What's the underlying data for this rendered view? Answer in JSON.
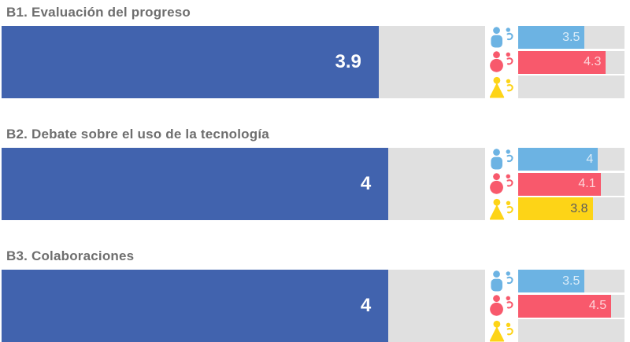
{
  "palette": {
    "overall_bar": "#4163ae",
    "school_leaders_bar": "#6cb3e3",
    "teachers_bar": "#f8596c",
    "students_bar": "#fdd417",
    "track_background": "#e0e0e0",
    "title_text": "#6e6e6e",
    "value_on_overall": "#ffffff",
    "value_on_light": "rgba(255,255,255,0.75)",
    "value_on_yellow": "#5c5c5c"
  },
  "scale_overall_range": "0,5",
  "scale_groups_range": "1,5",
  "chart_data": [
    {
      "type": "bar",
      "orientation": "horizontal",
      "title": "B1. Evaluación del progreso",
      "axis_range_overall": [
        0,
        5
      ],
      "axis_range_groups": [
        1,
        5
      ],
      "grid": false,
      "overall": {
        "value": 3.9,
        "label": "3.9"
      },
      "groups": [
        {
          "name": "school-leaders",
          "icon": "school-leaders-icon",
          "value": 3.5,
          "label": "3.5"
        },
        {
          "name": "teachers",
          "icon": "teachers-icon",
          "value": 4.3,
          "label": "4.3"
        },
        {
          "name": "students",
          "icon": "students-icon",
          "value": null,
          "label": ""
        }
      ]
    },
    {
      "type": "bar",
      "orientation": "horizontal",
      "title": "B2. Debate sobre el uso de la tecnología",
      "axis_range_overall": [
        0,
        5
      ],
      "axis_range_groups": [
        1,
        5
      ],
      "grid": false,
      "overall": {
        "value": 4,
        "label": "4"
      },
      "groups": [
        {
          "name": "school-leaders",
          "icon": "school-leaders-icon",
          "value": 4,
          "label": "4"
        },
        {
          "name": "teachers",
          "icon": "teachers-icon",
          "value": 4.1,
          "label": "4.1"
        },
        {
          "name": "students",
          "icon": "students-icon",
          "value": 3.8,
          "label": "3.8"
        }
      ]
    },
    {
      "type": "bar",
      "orientation": "horizontal",
      "title": "B3. Colaboraciones",
      "axis_range_overall": [
        0,
        5
      ],
      "axis_range_groups": [
        1,
        5
      ],
      "grid": false,
      "overall": {
        "value": 4,
        "label": "4"
      },
      "groups": [
        {
          "name": "school-leaders",
          "icon": "school-leaders-icon",
          "value": 3.5,
          "label": "3.5"
        },
        {
          "name": "teachers",
          "icon": "teachers-icon",
          "value": 4.5,
          "label": "4.5"
        },
        {
          "name": "students",
          "icon": "students-icon",
          "value": null,
          "label": ""
        }
      ]
    }
  ]
}
